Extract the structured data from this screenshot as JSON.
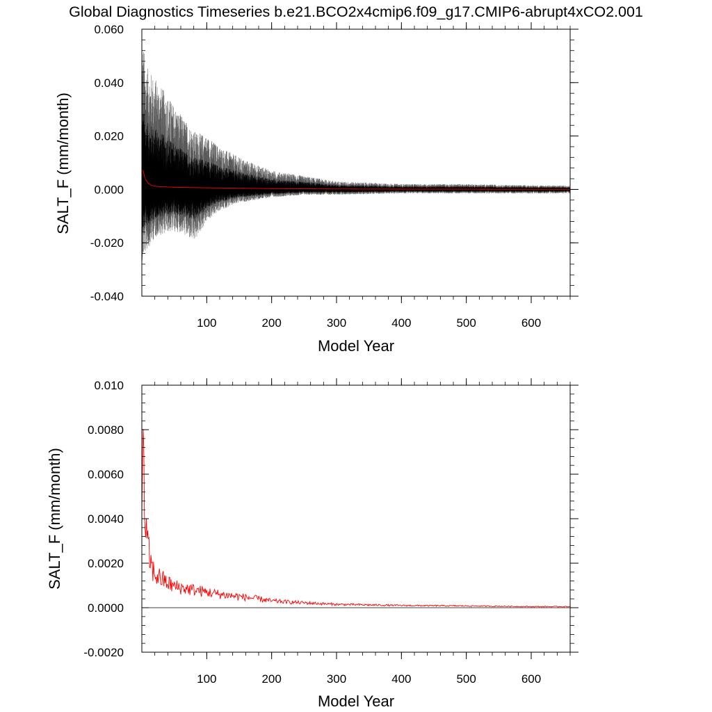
{
  "figure_title": "Global Diagnostics Timeseries b.e21.BCO2x4cmip6.f09_g17.CMIP6-abrupt4xCO2.001",
  "colors": {
    "background": "#ffffff",
    "axis": "#000000",
    "monthly": "#000000",
    "monthly_envelope": "#555555",
    "annual": "#ff0000"
  },
  "chart_data": [
    {
      "type": "line",
      "panel": "top",
      "xlabel": "Model Year",
      "ylabel": "SALT_F (mm/month)",
      "xlim": [
        0,
        660
      ],
      "ylim": [
        -0.04,
        0.06
      ],
      "x_ticks": [
        100,
        200,
        300,
        400,
        500,
        600
      ],
      "x_tick_labels": [
        "100",
        "200",
        "300",
        "400",
        "500",
        "600"
      ],
      "y_ticks": [
        -0.04,
        -0.02,
        0.0,
        0.02,
        0.04,
        0.06
      ],
      "y_tick_labels": [
        "-0.040",
        "-0.020",
        "0.000",
        "0.020",
        "0.040",
        "0.060"
      ],
      "zero_line": true,
      "series": [
        {
          "name": "monthly",
          "color": "#000000",
          "style": "noisy-envelope",
          "x": [
            0,
            2,
            5,
            10,
            20,
            40,
            60,
            80,
            100,
            120,
            150,
            200,
            250,
            300,
            400,
            500,
            600,
            660
          ],
          "upper": [
            0.05,
            0.056,
            0.048,
            0.045,
            0.042,
            0.035,
            0.028,
            0.022,
            0.02,
            0.016,
            0.012,
            0.007,
            0.005,
            0.003,
            0.002,
            0.002,
            0.0015,
            0.0015
          ],
          "lower": [
            -0.03,
            -0.026,
            -0.024,
            -0.022,
            -0.018,
            -0.016,
            -0.016,
            -0.02,
            -0.012,
            -0.008,
            -0.005,
            -0.003,
            -0.002,
            -0.002,
            -0.0015,
            -0.0015,
            -0.0015,
            -0.0015
          ]
        },
        {
          "name": "annual",
          "color": "#ff0000",
          "x": [
            0,
            2,
            5,
            10,
            15,
            20,
            30,
            50,
            100,
            200,
            300,
            400,
            500,
            600,
            660
          ],
          "y": [
            0.0072,
            0.007,
            0.004,
            0.0022,
            0.0015,
            0.0012,
            0.001,
            0.0008,
            0.0006,
            0.0003,
            0.00015,
            0.0001,
            8e-05,
            5e-05,
            5e-05
          ]
        }
      ]
    },
    {
      "type": "line",
      "panel": "bottom",
      "xlabel": "Model Year",
      "ylabel": "SALT_F (mm/month)",
      "xlim": [
        0,
        660
      ],
      "ylim": [
        -0.002,
        0.01
      ],
      "x_ticks": [
        100,
        200,
        300,
        400,
        500,
        600
      ],
      "x_tick_labels": [
        "100",
        "200",
        "300",
        "400",
        "500",
        "600"
      ],
      "y_ticks": [
        -0.002,
        0.0,
        0.002,
        0.004,
        0.006,
        0.008,
        0.01
      ],
      "y_tick_labels": [
        "-0.0020",
        "0.0000",
        "0.0020",
        "0.0040",
        "0.0060",
        "0.0080",
        "0.010"
      ],
      "zero_line": true,
      "series": [
        {
          "name": "annual",
          "color": "#ff0000",
          "x": [
            0,
            1,
            2,
            3,
            5,
            7,
            10,
            15,
            20,
            30,
            40,
            50,
            60,
            70,
            80,
            100,
            120,
            150,
            180,
            200,
            250,
            300,
            400,
            500,
            600,
            660
          ],
          "y": [
            0.0065,
            0.0072,
            0.0068,
            0.0055,
            0.0042,
            0.0032,
            0.0025,
            0.0018,
            0.0015,
            0.0013,
            0.0011,
            0.00095,
            0.0009,
            0.00085,
            0.0008,
            0.0007,
            0.0006,
            0.0005,
            0.0004,
            0.0003,
            0.00022,
            0.00015,
            0.0001,
            8e-05,
            5e-05,
            5e-05
          ]
        }
      ]
    }
  ]
}
